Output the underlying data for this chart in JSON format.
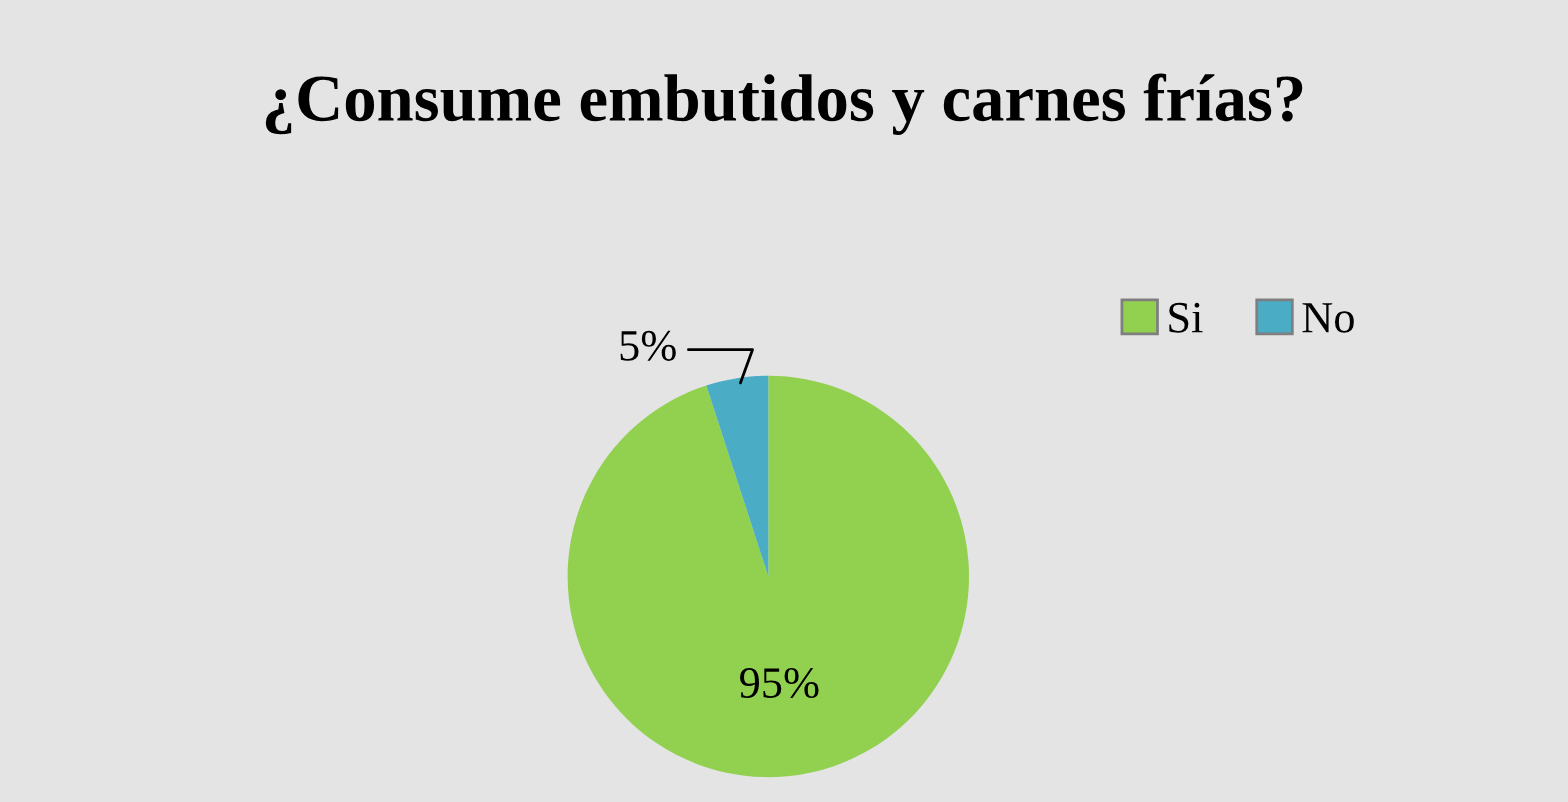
{
  "chart_data": {
    "type": "pie",
    "title": "¿Consume embutidos y carnes frías?",
    "categories": [
      "Si",
      "No"
    ],
    "values": [
      95,
      5
    ],
    "colors": [
      "#92d050",
      "#4bacc6"
    ],
    "value_labels": [
      "95%",
      "5%"
    ],
    "legend": "right"
  }
}
